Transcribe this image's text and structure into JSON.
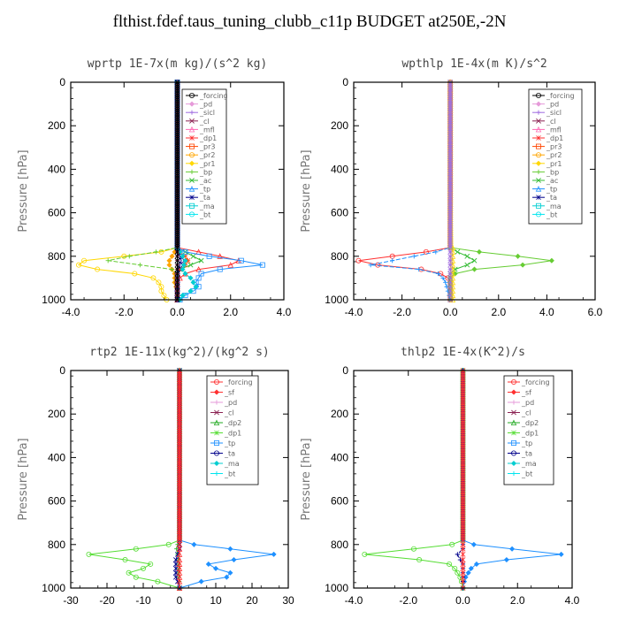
{
  "figure": {
    "title": "flthist.fdef.taus_tuning_clubb_c11p  BUDGET at250E,-2N"
  },
  "colors": {
    "_forcing": "#000000",
    "_pd": "#e69ad9",
    "_sicl": "#a06ce0",
    "_cl": "#8b2252",
    "_mfl": "#ff69b4",
    "_dp1": "#ff3030",
    "_pr3": "#ff4500",
    "_pr2": "#ffa500",
    "_pr1": "#ffd700",
    "_bp": "#66cc33",
    "_ac": "#33bb33",
    "_tp": "#1e90ff",
    "_ta": "#00008b",
    "_ma": "#00ced1",
    "_bt": "#00e5ee",
    "_sf": "#ff3030",
    "_dp2": "#22aa22",
    "_dp1g": "#55dd33"
  },
  "chart_data": [
    {
      "type": "line",
      "title": "wprtp   1E-7x(m kg)/(s^2 kg)",
      "ylabel": "Pressure [hPa]",
      "xlim": [
        -4,
        4
      ],
      "ylim": [
        1000,
        0
      ],
      "xticks": [
        "-4.0",
        "-2.0",
        "0.0",
        "2.0",
        "4.0"
      ],
      "yticks": [
        "0",
        "200",
        "400",
        "600",
        "800",
        "1000"
      ],
      "legend": "top-right",
      "legend_entries": [
        "_forcing",
        "_pd",
        "_sicl",
        "_cl",
        "_mfl",
        "_dp1",
        "_pr3",
        "_pr2",
        "_pr1",
        "_bp",
        "_ac",
        "_tp",
        "_ta",
        "_ma",
        "_bt"
      ],
      "p": [
        760,
        780,
        800,
        820,
        840,
        860,
        880,
        900,
        920,
        940,
        960,
        980,
        1000
      ],
      "series": [
        {
          "name": "_pr1",
          "color": "#ffd700",
          "values": [
            0,
            -0.6,
            -2.0,
            -3.5,
            -3.7,
            -3.0,
            -1.6,
            -0.9,
            -0.7,
            -0.6,
            -0.6,
            -0.5,
            -0.4
          ]
        },
        {
          "name": "_pr2",
          "color": "#ffa500",
          "values": [
            0,
            -0.1,
            -0.2,
            -0.3,
            -0.3,
            -0.2,
            -0.1,
            -0.1,
            -0.1,
            -0.05,
            0,
            0,
            0
          ]
        },
        {
          "name": "_bp",
          "color": "#66cc33",
          "values": [
            0,
            -0.8,
            -1.8,
            -2.6,
            -1.4,
            -0.2,
            0,
            0,
            0,
            0,
            0,
            0,
            0
          ]
        },
        {
          "name": "_ac",
          "color": "#33bb33",
          "values": [
            0,
            0.3,
            0.6,
            0.9,
            0.5,
            0.1,
            0,
            0,
            0,
            0,
            0,
            0,
            0
          ]
        },
        {
          "name": "_dp1",
          "color": "#ff3030",
          "values": [
            0,
            0.8,
            1.6,
            2.3,
            2.0,
            0.8,
            0.3,
            0.1,
            0,
            0,
            0,
            0,
            0
          ]
        },
        {
          "name": "_pr3",
          "color": "#ff4500",
          "values": [
            0,
            0.1,
            0.3,
            0.4,
            0.3,
            0.1,
            0,
            0,
            0,
            0,
            0,
            0,
            0
          ]
        },
        {
          "name": "_tp",
          "color": "#1e90ff",
          "values": [
            0,
            0.3,
            1.2,
            2.4,
            3.2,
            1.6,
            0.9,
            0.8,
            0.7,
            0.8,
            0.6,
            0.3,
            0.1
          ]
        },
        {
          "name": "_ta",
          "color": "#00008b",
          "values": [
            0,
            0.05,
            0.1,
            0.15,
            0.1,
            0.05,
            0,
            0,
            0,
            0,
            0,
            0,
            0
          ]
        },
        {
          "name": "_ma",
          "color": "#00ced1",
          "values": [
            0,
            0.1,
            0.2,
            0.3,
            0.25,
            0.2,
            0.3,
            0.5,
            0.6,
            0.7,
            0.5,
            0.2,
            0.1
          ]
        },
        {
          "name": "_cl",
          "color": "#8b2252",
          "values": [
            0,
            0,
            0,
            0,
            0,
            0,
            0,
            0,
            0,
            0,
            0,
            0,
            0
          ]
        },
        {
          "name": "_forcing",
          "color": "#000000",
          "values": [
            0,
            0,
            0,
            0,
            0,
            0,
            0,
            0,
            0,
            0,
            0,
            0,
            0
          ]
        }
      ]
    },
    {
      "type": "line",
      "title": "wpthlp   1E-4x(m K)/s^2",
      "ylabel": "Pressure [hPa]",
      "xlim": [
        -4,
        6
      ],
      "ylim": [
        1000,
        0
      ],
      "xticks": [
        "-4.0",
        "-2.0",
        "0.0",
        "2.0",
        "4.0",
        "6.0"
      ],
      "yticks": [
        "0",
        "200",
        "400",
        "600",
        "800",
        "1000"
      ],
      "legend": "top-right",
      "legend_entries": [
        "_forcing",
        "_pd",
        "_sicl",
        "_cl",
        "_mfl",
        "_dp1",
        "_pr3",
        "_pr2",
        "_pr1",
        "_bp",
        "_ac",
        "_tp",
        "_ta",
        "_ma",
        "_bt"
      ],
      "p": [
        760,
        780,
        800,
        820,
        840,
        860,
        880,
        900,
        920,
        940,
        960,
        980,
        1000
      ],
      "series": [
        {
          "name": "_dp1",
          "color": "#ff3030",
          "values": [
            0,
            -1.0,
            -2.4,
            -3.8,
            -3.0,
            -1.2,
            -0.4,
            -0.1,
            0,
            0,
            0,
            0,
            0
          ]
        },
        {
          "name": "_bp",
          "color": "#66cc33",
          "values": [
            0,
            1.2,
            2.8,
            4.2,
            3.0,
            1.0,
            0.2,
            0,
            0,
            0,
            0,
            0,
            0
          ]
        },
        {
          "name": "_tp",
          "color": "#1e90ff",
          "values": [
            0,
            -0.6,
            -1.5,
            -2.4,
            -3.3,
            -1.3,
            -0.5,
            -0.3,
            -0.2,
            -0.15,
            -0.1,
            -0.05,
            0
          ]
        },
        {
          "name": "_ac",
          "color": "#33bb33",
          "values": [
            0,
            0.3,
            0.7,
            1.0,
            0.7,
            0.2,
            0,
            0,
            0,
            0,
            0,
            0,
            0
          ]
        },
        {
          "name": "_pr1",
          "color": "#ffd700",
          "values": [
            0.1,
            0.1,
            0.1,
            0.1,
            0.1,
            0.1,
            0.1,
            0.1,
            0.1,
            0.1,
            0.1,
            0.1,
            0.1
          ]
        },
        {
          "name": "_sicl",
          "color": "#a06ce0",
          "values": [
            0,
            0,
            0,
            0,
            0,
            0,
            0,
            0,
            0,
            0,
            0,
            0,
            0
          ]
        }
      ]
    },
    {
      "type": "line",
      "title": "rtp2   1E-11x(kg^2)/(kg^2 s)",
      "ylabel": "Pressure [hPa]",
      "xlim": [
        -30,
        30
      ],
      "ylim": [
        1000,
        0
      ],
      "xticks": [
        "-30",
        "-20",
        "-10",
        "0",
        "10",
        "20",
        "30"
      ],
      "yticks": [
        "0",
        "200",
        "400",
        "600",
        "800",
        "1000"
      ],
      "legend": "top-right",
      "legend_entries": [
        "_forcing",
        "_sf",
        "_pd",
        "_cl",
        "_dp2",
        "_dp1",
        "_tp",
        "_ta",
        "_ma",
        "_bt"
      ],
      "p": [
        780,
        800,
        820,
        845,
        870,
        890,
        910,
        930,
        950,
        970,
        1000
      ],
      "series": [
        {
          "name": "_dp1",
          "color": "#55dd33",
          "values": [
            0,
            -3,
            -12,
            -25,
            -15,
            -8,
            -10,
            -14,
            -12,
            -6,
            0
          ]
        },
        {
          "name": "_tp",
          "color": "#1e90ff",
          "values": [
            0,
            4,
            14,
            26,
            15,
            8,
            10,
            14,
            13,
            6,
            0
          ]
        },
        {
          "name": "_dp2",
          "color": "#22aa22",
          "values": [
            0,
            -0.5,
            -0.8,
            -0.5,
            -0.3,
            -0.2,
            -0.2,
            -0.3,
            -0.2,
            -0.1,
            0
          ]
        },
        {
          "name": "_ta",
          "color": "#00008b",
          "values": [
            0,
            0,
            0,
            -0.5,
            -1,
            -1,
            -1,
            -1,
            -1,
            -0.5,
            0
          ]
        },
        {
          "name": "_forcing",
          "color": "#ff3030",
          "values": [
            0,
            0,
            0,
            0,
            0,
            0,
            0,
            0,
            0,
            0,
            0
          ]
        }
      ]
    },
    {
      "type": "line",
      "title": "thlp2   1E-4x(K^2)/s",
      "ylabel": "Pressure [hPa]",
      "xlim": [
        -4,
        4
      ],
      "ylim": [
        1000,
        0
      ],
      "xticks": [
        "-4.0",
        "-2.0",
        "0.0",
        "2.0",
        "4.0"
      ],
      "yticks": [
        "0",
        "200",
        "400",
        "600",
        "800",
        "1000"
      ],
      "legend": "top-right",
      "legend_entries": [
        "_forcing",
        "_sf",
        "_pd",
        "_cl",
        "_dp2",
        "_dp1",
        "_tp",
        "_ta",
        "_ma",
        "_bt"
      ],
      "p": [
        780,
        800,
        820,
        845,
        870,
        890,
        910,
        930,
        950,
        970,
        1000
      ],
      "series": [
        {
          "name": "_dp1",
          "color": "#55dd33",
          "values": [
            0,
            -0.4,
            -1.8,
            -3.6,
            -1.6,
            -0.5,
            -0.3,
            -0.2,
            -0.1,
            -0.05,
            0
          ]
        },
        {
          "name": "_tp",
          "color": "#1e90ff",
          "values": [
            0,
            0.4,
            1.8,
            3.6,
            1.6,
            0.5,
            0.3,
            0.2,
            0.1,
            0.05,
            0
          ]
        },
        {
          "name": "_ta",
          "color": "#00008b",
          "values": [
            0,
            0,
            0,
            -0.2,
            -0.1,
            0,
            0,
            0,
            0,
            0,
            0
          ]
        },
        {
          "name": "_forcing",
          "color": "#ff3030",
          "values": [
            0,
            0,
            0,
            0,
            0,
            0,
            0,
            0,
            0,
            0,
            0
          ]
        }
      ]
    }
  ]
}
